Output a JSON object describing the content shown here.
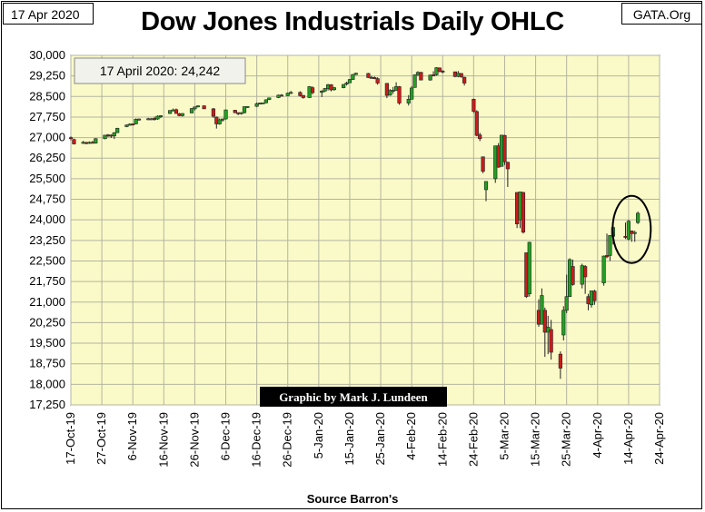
{
  "header": {
    "date_label": "17 Apr 2020",
    "brand": "GATA.Org"
  },
  "footer": {
    "source": "Source Barron's"
  },
  "colors": {
    "plot_background": "#fafac8",
    "up_candle": "#22a022",
    "down_candle": "#cc1a1a",
    "grid": "#b4b4a0",
    "credit_box": "#000000"
  },
  "chart_data": {
    "type": "candlestick",
    "title": "Dow Jones Industrials Daily OHLC",
    "xlabel": "",
    "ylabel": "",
    "ylim": [
      17250,
      30000
    ],
    "y_ticks": [
      30000,
      29250,
      28500,
      27750,
      27000,
      26250,
      25500,
      24750,
      24000,
      23250,
      22500,
      21750,
      21000,
      20250,
      19500,
      18750,
      18000,
      17250
    ],
    "y_tick_labels": [
      "30,000",
      "29,250",
      "28,500",
      "27,750",
      "27,000",
      "26,250",
      "25,500",
      "24,750",
      "24,000",
      "23,250",
      "22,500",
      "21,750",
      "21,000",
      "20,250",
      "19,500",
      "18,750",
      "18,000",
      "17,250"
    ],
    "x_tick_labels": [
      "17-Oct-19",
      "27-Oct-19",
      "6-Nov-19",
      "16-Nov-19",
      "26-Nov-19",
      "6-Dec-19",
      "16-Dec-19",
      "26-Dec-19",
      "5-Jan-20",
      "15-Jan-20",
      "25-Jan-20",
      "4-Feb-20",
      "14-Feb-20",
      "24-Feb-20",
      "5-Mar-20",
      "15-Mar-20",
      "25-Mar-20",
      "4-Apr-20",
      "14-Apr-20",
      "24-Apr-20"
    ],
    "x_range_days": [
      0,
      190
    ],
    "grid": true,
    "annotation": "17 April 2020: 24,242",
    "credit": "Graphic by Mark J. Lundeen",
    "circle_note": "circle around 14-17 Apr 2020 candles",
    "series": [
      {
        "d": 0,
        "o": 27000,
        "h": 27050,
        "l": 26900,
        "c": 26970
      },
      {
        "d": 1,
        "o": 26930,
        "h": 26960,
        "l": 26750,
        "c": 26770
      },
      {
        "d": 4,
        "o": 26800,
        "h": 26880,
        "l": 26770,
        "c": 26830
      },
      {
        "d": 5,
        "o": 26820,
        "h": 26850,
        "l": 26760,
        "c": 26790
      },
      {
        "d": 6,
        "o": 26790,
        "h": 26860,
        "l": 26770,
        "c": 26830
      },
      {
        "d": 7,
        "o": 26830,
        "h": 26880,
        "l": 26790,
        "c": 26810
      },
      {
        "d": 8,
        "o": 26800,
        "h": 26980,
        "l": 26780,
        "c": 26960
      },
      {
        "d": 11,
        "o": 26960,
        "h": 27080,
        "l": 26940,
        "c": 27090
      },
      {
        "d": 12,
        "o": 27100,
        "h": 27130,
        "l": 27020,
        "c": 27070
      },
      {
        "d": 13,
        "o": 27090,
        "h": 27120,
        "l": 26990,
        "c": 27050
      },
      {
        "d": 14,
        "o": 27060,
        "h": 27200,
        "l": 26950,
        "c": 27180
      },
      {
        "d": 15,
        "o": 27180,
        "h": 27360,
        "l": 27170,
        "c": 27340
      },
      {
        "d": 18,
        "o": 27400,
        "h": 27480,
        "l": 27380,
        "c": 27460
      },
      {
        "d": 19,
        "o": 27470,
        "h": 27520,
        "l": 27440,
        "c": 27490
      },
      {
        "d": 20,
        "o": 27500,
        "h": 27510,
        "l": 27440,
        "c": 27480
      },
      {
        "d": 21,
        "o": 27500,
        "h": 27700,
        "l": 27490,
        "c": 27670
      },
      {
        "d": 22,
        "o": 27670,
        "h": 27700,
        "l": 27620,
        "c": 27680
      },
      {
        "d": 25,
        "o": 27690,
        "h": 27720,
        "l": 27640,
        "c": 27690
      },
      {
        "d": 26,
        "o": 27680,
        "h": 27710,
        "l": 27640,
        "c": 27690
      },
      {
        "d": 27,
        "o": 27700,
        "h": 27760,
        "l": 27620,
        "c": 27670
      },
      {
        "d": 28,
        "o": 27680,
        "h": 27810,
        "l": 27650,
        "c": 27780
      },
      {
        "d": 29,
        "o": 27790,
        "h": 27820,
        "l": 27710,
        "c": 27800
      },
      {
        "d": 32,
        "o": 27880,
        "h": 28000,
        "l": 27860,
        "c": 27990
      },
      {
        "d": 33,
        "o": 28000,
        "h": 28060,
        "l": 27980,
        "c": 28010
      },
      {
        "d": 34,
        "o": 28020,
        "h": 28060,
        "l": 27870,
        "c": 27880
      },
      {
        "d": 35,
        "o": 27870,
        "h": 27900,
        "l": 27780,
        "c": 27800
      },
      {
        "d": 36,
        "o": 27800,
        "h": 27890,
        "l": 27770,
        "c": 27880
      },
      {
        "d": 39,
        "o": 27900,
        "h": 28080,
        "l": 27890,
        "c": 28060
      },
      {
        "d": 40,
        "o": 28050,
        "h": 28120,
        "l": 27990,
        "c": 28120
      },
      {
        "d": 41,
        "o": 28120,
        "h": 28170,
        "l": 28100,
        "c": 28160
      },
      {
        "d": 43,
        "o": 28160,
        "h": 28180,
        "l": 28050,
        "c": 28050
      },
      {
        "d": 46,
        "o": 28050,
        "h": 28080,
        "l": 27720,
        "c": 27780
      },
      {
        "d": 47,
        "o": 27750,
        "h": 27770,
        "l": 27330,
        "c": 27500
      },
      {
        "d": 48,
        "o": 27500,
        "h": 27700,
        "l": 27470,
        "c": 27650
      },
      {
        "d": 49,
        "o": 27660,
        "h": 27700,
        "l": 27580,
        "c": 27680
      },
      {
        "d": 50,
        "o": 27680,
        "h": 28020,
        "l": 27660,
        "c": 28010
      },
      {
        "d": 53,
        "o": 28000,
        "h": 28010,
        "l": 27890,
        "c": 27910
      },
      {
        "d": 54,
        "o": 27910,
        "h": 27920,
        "l": 27820,
        "c": 27880
      },
      {
        "d": 55,
        "o": 27880,
        "h": 27930,
        "l": 27840,
        "c": 27910
      },
      {
        "d": 56,
        "o": 27910,
        "h": 28130,
        "l": 27880,
        "c": 28130
      },
      {
        "d": 57,
        "o": 28130,
        "h": 28140,
        "l": 28080,
        "c": 28135
      },
      {
        "d": 60,
        "o": 28140,
        "h": 28280,
        "l": 28120,
        "c": 28240
      },
      {
        "d": 61,
        "o": 28250,
        "h": 28280,
        "l": 28220,
        "c": 28260
      },
      {
        "d": 62,
        "o": 28260,
        "h": 28280,
        "l": 28240,
        "c": 28270
      },
      {
        "d": 63,
        "o": 28270,
        "h": 28400,
        "l": 28250,
        "c": 28380
      },
      {
        "d": 64,
        "o": 28390,
        "h": 28460,
        "l": 28370,
        "c": 28450
      },
      {
        "d": 67,
        "o": 28460,
        "h": 28570,
        "l": 28440,
        "c": 28550
      },
      {
        "d": 68,
        "o": 28550,
        "h": 28590,
        "l": 28510,
        "c": 28520
      },
      {
        "d": 70,
        "o": 28530,
        "h": 28640,
        "l": 28520,
        "c": 28620
      },
      {
        "d": 71,
        "o": 28620,
        "h": 28700,
        "l": 28590,
        "c": 28650
      },
      {
        "d": 74,
        "o": 28650,
        "h": 28690,
        "l": 28500,
        "c": 28530
      },
      {
        "d": 75,
        "o": 28540,
        "h": 28550,
        "l": 28420,
        "c": 28460
      },
      {
        "d": 77,
        "o": 28460,
        "h": 28880,
        "l": 28450,
        "c": 28860
      },
      {
        "d": 78,
        "o": 28820,
        "h": 28870,
        "l": 28580,
        "c": 28640
      },
      {
        "d": 81,
        "o": 28650,
        "h": 28730,
        "l": 28480,
        "c": 28700
      },
      {
        "d": 82,
        "o": 28700,
        "h": 28810,
        "l": 28660,
        "c": 28790
      },
      {
        "d": 83,
        "o": 28790,
        "h": 28960,
        "l": 28720,
        "c": 28930
      },
      {
        "d": 84,
        "o": 28930,
        "h": 28950,
        "l": 28690,
        "c": 28740
      },
      {
        "d": 85,
        "o": 28750,
        "h": 28850,
        "l": 28710,
        "c": 28820
      },
      {
        "d": 88,
        "o": 28820,
        "h": 28950,
        "l": 28800,
        "c": 28940
      },
      {
        "d": 89,
        "o": 28950,
        "h": 29040,
        "l": 28900,
        "c": 28990
      },
      {
        "d": 90,
        "o": 29000,
        "h": 29140,
        "l": 28990,
        "c": 29120
      },
      {
        "d": 91,
        "o": 29120,
        "h": 29320,
        "l": 29110,
        "c": 29300
      },
      {
        "d": 92,
        "o": 29300,
        "h": 29370,
        "l": 29280,
        "c": 29350
      },
      {
        "d": 96,
        "o": 29340,
        "h": 29360,
        "l": 29180,
        "c": 29190
      },
      {
        "d": 97,
        "o": 29200,
        "h": 29250,
        "l": 29150,
        "c": 29180
      },
      {
        "d": 98,
        "o": 29190,
        "h": 29230,
        "l": 29130,
        "c": 29160
      },
      {
        "d": 99,
        "o": 29150,
        "h": 29200,
        "l": 28930,
        "c": 28990
      },
      {
        "d": 102,
        "o": 28980,
        "h": 28990,
        "l": 28440,
        "c": 28540
      },
      {
        "d": 103,
        "o": 28550,
        "h": 28770,
        "l": 28530,
        "c": 28720
      },
      {
        "d": 104,
        "o": 28720,
        "h": 28850,
        "l": 28600,
        "c": 28730
      },
      {
        "d": 105,
        "o": 28730,
        "h": 29020,
        "l": 28700,
        "c": 28860
      },
      {
        "d": 106,
        "o": 28860,
        "h": 28880,
        "l": 28200,
        "c": 28260
      },
      {
        "d": 109,
        "o": 28260,
        "h": 28550,
        "l": 28170,
        "c": 28400
      },
      {
        "d": 110,
        "o": 28400,
        "h": 28880,
        "l": 28390,
        "c": 28810
      },
      {
        "d": 111,
        "o": 28830,
        "h": 29300,
        "l": 28820,
        "c": 29290
      },
      {
        "d": 112,
        "o": 29300,
        "h": 29420,
        "l": 29250,
        "c": 29380
      },
      {
        "d": 113,
        "o": 29380,
        "h": 29400,
        "l": 29090,
        "c": 29100
      },
      {
        "d": 116,
        "o": 29100,
        "h": 29300,
        "l": 29080,
        "c": 29280
      },
      {
        "d": 117,
        "o": 29290,
        "h": 29420,
        "l": 29240,
        "c": 29280
      },
      {
        "d": 118,
        "o": 29290,
        "h": 29570,
        "l": 29260,
        "c": 29550
      },
      {
        "d": 119,
        "o": 29540,
        "h": 29560,
        "l": 29380,
        "c": 29420
      },
      {
        "d": 120,
        "o": 29430,
        "h": 29460,
        "l": 29350,
        "c": 29400
      },
      {
        "d": 124,
        "o": 29400,
        "h": 29410,
        "l": 29200,
        "c": 29230
      },
      {
        "d": 125,
        "o": 29230,
        "h": 29430,
        "l": 29200,
        "c": 29350
      },
      {
        "d": 126,
        "o": 29340,
        "h": 29350,
        "l": 29180,
        "c": 29220
      },
      {
        "d": 127,
        "o": 29200,
        "h": 29220,
        "l": 28900,
        "c": 28990
      },
      {
        "d": 130,
        "o": 28400,
        "h": 28420,
        "l": 27900,
        "c": 27960
      },
      {
        "d": 131,
        "o": 27950,
        "h": 28000,
        "l": 27050,
        "c": 27080
      },
      {
        "d": 132,
        "o": 27100,
        "h": 27180,
        "l": 26870,
        "c": 26960
      },
      {
        "d": 133,
        "o": 26300,
        "h": 26300,
        "l": 25700,
        "c": 25770
      },
      {
        "d": 134,
        "o": 25100,
        "h": 25400,
        "l": 24680,
        "c": 25400
      },
      {
        "d": 137,
        "o": 25500,
        "h": 26700,
        "l": 25350,
        "c": 26700
      },
      {
        "d": 138,
        "o": 26700,
        "h": 26800,
        "l": 25900,
        "c": 25920
      },
      {
        "d": 139,
        "o": 25950,
        "h": 27100,
        "l": 25950,
        "c": 27090
      },
      {
        "d": 140,
        "o": 27080,
        "h": 27100,
        "l": 26000,
        "c": 26120
      },
      {
        "d": 141,
        "o": 26100,
        "h": 26120,
        "l": 25200,
        "c": 25860
      },
      {
        "d": 144,
        "o": 25000,
        "h": 25000,
        "l": 23700,
        "c": 23850
      },
      {
        "d": 145,
        "o": 24000,
        "h": 25020,
        "l": 23700,
        "c": 25020
      },
      {
        "d": 146,
        "o": 25000,
        "h": 25020,
        "l": 23500,
        "c": 23550
      },
      {
        "d": 147,
        "o": 22800,
        "h": 22800,
        "l": 21150,
        "c": 21200
      },
      {
        "d": 148,
        "o": 21300,
        "h": 23200,
        "l": 21200,
        "c": 23180
      },
      {
        "d": 151,
        "o": 20700,
        "h": 21100,
        "l": 20100,
        "c": 20190
      },
      {
        "d": 152,
        "o": 20190,
        "h": 21500,
        "l": 20200,
        "c": 21240
      },
      {
        "d": 153,
        "o": 20700,
        "h": 20800,
        "l": 19000,
        "c": 19900
      },
      {
        "d": 154,
        "o": 19900,
        "h": 20500,
        "l": 19100,
        "c": 20090
      },
      {
        "d": 155,
        "o": 20000,
        "h": 20350,
        "l": 18900,
        "c": 19170
      },
      {
        "d": 158,
        "o": 19100,
        "h": 19200,
        "l": 18200,
        "c": 18590
      },
      {
        "d": 159,
        "o": 19800,
        "h": 20850,
        "l": 19600,
        "c": 20700
      },
      {
        "d": 160,
        "o": 20700,
        "h": 22000,
        "l": 20600,
        "c": 21200
      },
      {
        "d": 161,
        "o": 21200,
        "h": 22600,
        "l": 21200,
        "c": 22550
      },
      {
        "d": 162,
        "o": 22300,
        "h": 22550,
        "l": 21600,
        "c": 21640
      },
      {
        "d": 165,
        "o": 21650,
        "h": 22400,
        "l": 21500,
        "c": 22330
      },
      {
        "d": 166,
        "o": 22300,
        "h": 22350,
        "l": 21300,
        "c": 21920
      },
      {
        "d": 167,
        "o": 21200,
        "h": 21300,
        "l": 20700,
        "c": 20940
      },
      {
        "d": 168,
        "o": 20900,
        "h": 21400,
        "l": 20800,
        "c": 21410
      },
      {
        "d": 169,
        "o": 21400,
        "h": 21450,
        "l": 20900,
        "c": 21050
      },
      {
        "d": 172,
        "o": 21700,
        "h": 22700,
        "l": 21600,
        "c": 22680
      },
      {
        "d": 173,
        "o": 22700,
        "h": 23500,
        "l": 22600,
        "c": 22650
      },
      {
        "d": 174,
        "o": 22700,
        "h": 23400,
        "l": 22500,
        "c": 23430
      },
      {
        "d": 175,
        "o": 23400,
        "h": 23800,
        "l": 23100,
        "c": 23720
      },
      {
        "d": 179,
        "o": 23400,
        "h": 23900,
        "l": 23300,
        "c": 23390
      },
      {
        "d": 180,
        "o": 23300,
        "h": 24000,
        "l": 23250,
        "c": 23950
      },
      {
        "d": 181,
        "o": 23600,
        "h": 23600,
        "l": 23200,
        "c": 23500
      },
      {
        "d": 182,
        "o": 23500,
        "h": 23600,
        "l": 23200,
        "c": 23540
      },
      {
        "d": 183,
        "o": 23900,
        "h": 24300,
        "l": 23850,
        "c": 24242
      }
    ]
  }
}
